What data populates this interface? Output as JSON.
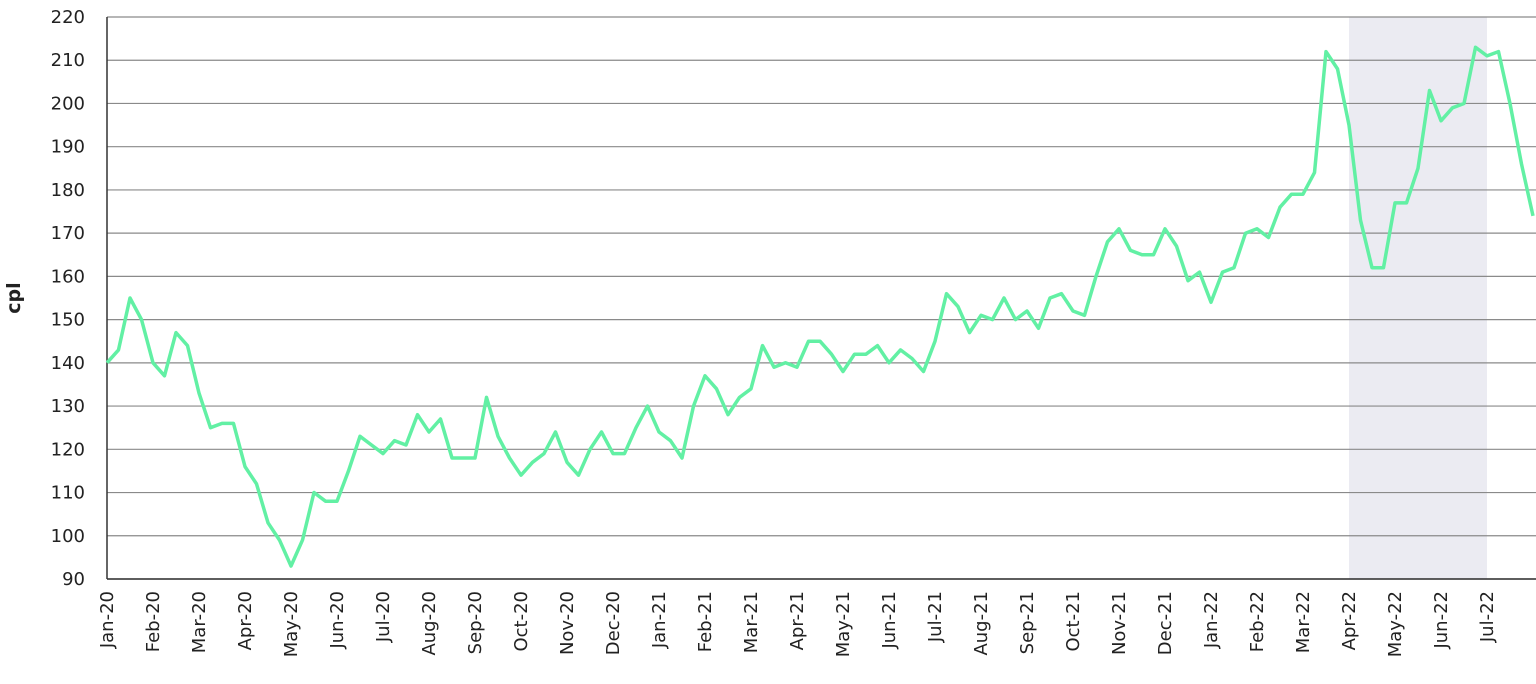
{
  "chart_data": {
    "type": "line",
    "y_label": "cpl",
    "categories": [
      "Jan-20",
      null,
      null,
      null,
      "Feb-20",
      null,
      null,
      null,
      "Mar-20",
      null,
      null,
      null,
      "Apr-20",
      null,
      null,
      null,
      "May-20",
      null,
      null,
      null,
      "Jun-20",
      null,
      null,
      null,
      "Jul-20",
      null,
      null,
      null,
      "Aug-20",
      null,
      null,
      null,
      "Sep-20",
      null,
      null,
      null,
      "Oct-20",
      null,
      null,
      null,
      "Nov-20",
      null,
      null,
      null,
      "Dec-20",
      null,
      null,
      null,
      "Jan-21",
      null,
      null,
      null,
      "Feb-21",
      null,
      null,
      null,
      "Mar-21",
      null,
      null,
      null,
      "Apr-21",
      null,
      null,
      null,
      "May-21",
      null,
      null,
      null,
      "Jun-21",
      null,
      null,
      null,
      "Jul-21",
      null,
      null,
      null,
      "Aug-21",
      null,
      null,
      null,
      "Sep-21",
      null,
      null,
      null,
      "Oct-21",
      null,
      null,
      null,
      "Nov-21",
      null,
      null,
      null,
      "Dec-21",
      null,
      null,
      null,
      "Jan-22",
      null,
      null,
      null,
      "Feb-22",
      null,
      null,
      null,
      "Mar-22",
      null,
      null,
      null,
      "Apr-22",
      null,
      null,
      null,
      "May-22",
      null,
      null,
      null,
      "Jun-22",
      null,
      null,
      null,
      "Jul-22",
      null,
      null,
      null,
      null
    ],
    "series": [
      {
        "color": "#62f0a4",
        "values": [
          140,
          143,
          155,
          150,
          140,
          137,
          147,
          144,
          133,
          125,
          126,
          126,
          116,
          112,
          103,
          99,
          93,
          99,
          110,
          108,
          108,
          115,
          123,
          121,
          119,
          122,
          121,
          128,
          124,
          127,
          118,
          118,
          118,
          132,
          123,
          118,
          114,
          117,
          119,
          124,
          117,
          114,
          120,
          124,
          119,
          119,
          125,
          130,
          124,
          122,
          118,
          130,
          137,
          134,
          128,
          132,
          134,
          144,
          139,
          140,
          139,
          145,
          145,
          142,
          138,
          142,
          142,
          144,
          140,
          143,
          141,
          138,
          145,
          156,
          153,
          147,
          151,
          150,
          155,
          150,
          152,
          148,
          155,
          156,
          152,
          151,
          160,
          168,
          171,
          166,
          165,
          165,
          171,
          167,
          159,
          161,
          154,
          161,
          162,
          170,
          171,
          169,
          176,
          179,
          179,
          184,
          212,
          208,
          195,
          173,
          162,
          162,
          177,
          177,
          185,
          203,
          196,
          199,
          200,
          213,
          211,
          212,
          200,
          186,
          174
        ]
      }
    ],
    "highlight": {
      "from": "Apr-22",
      "to": "Jul-22",
      "color": "#ebebf2"
    },
    "ylim": [
      90,
      220
    ],
    "yticks": [
      90,
      100,
      110,
      120,
      130,
      140,
      150,
      160,
      170,
      180,
      190,
      200,
      210,
      220
    ],
    "grid": true
  }
}
